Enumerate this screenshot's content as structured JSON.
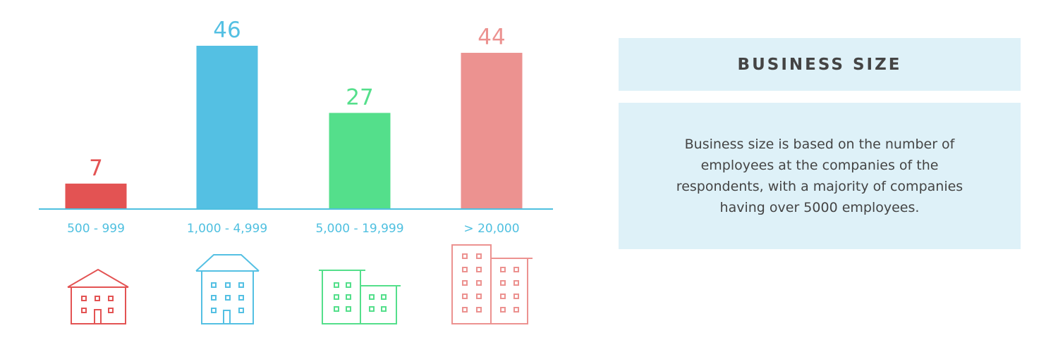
{
  "chart_data": {
    "type": "bar",
    "categories": [
      "500 - 999",
      "1,000 - 4,999",
      "5,000 - 19,999",
      "> 20,000"
    ],
    "values": [
      7,
      46,
      27,
      44
    ],
    "colors": [
      "#e35353",
      "#54c0e3",
      "#54df8b",
      "#ec9290"
    ],
    "icons": [
      "small-house-icon",
      "house-icon",
      "office-building-icon",
      "tall-building-icon"
    ],
    "axis_color": "#4fc0e0"
  },
  "panel": {
    "title": "BUSINESS SIZE",
    "description": "Business size is based on the number of employees at the companies of the respondents, with a majority of companies having over 5000 employees."
  }
}
